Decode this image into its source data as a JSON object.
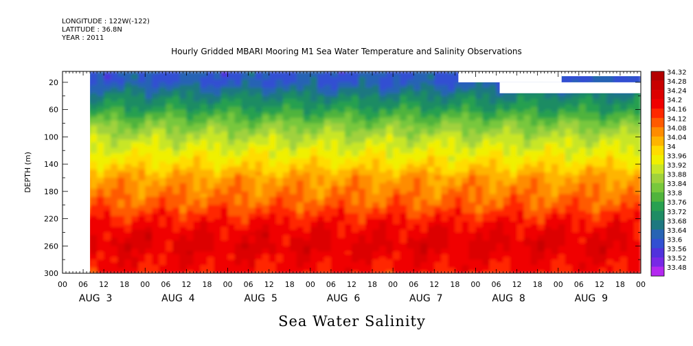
{
  "header": {
    "longitude": "LONGITUDE : 122W(-122)",
    "latitude": "LATITUDE : 36.8N",
    "year": "YEAR : 2011"
  },
  "chart_data": {
    "type": "heatmap",
    "title": "Hourly Gridded MBARI Mooring M1 Sea Water Temperature and Salinity Observations",
    "bottom_title": "Sea Water Salinity",
    "ylabel": "DEPTH (m)",
    "xlabel": "",
    "ylim": [
      300,
      4
    ],
    "y_ticks": [
      20,
      60,
      100,
      140,
      180,
      220,
      260,
      300
    ],
    "x_range_hours": [
      0,
      168
    ],
    "hour_ticks": [
      "00",
      "06",
      "12",
      "18",
      "00",
      "06",
      "12",
      "18",
      "00",
      "06",
      "12",
      "18",
      "00",
      "06",
      "12",
      "18",
      "00",
      "06",
      "12",
      "18",
      "00",
      "06",
      "12",
      "18",
      "00",
      "06",
      "12",
      "18",
      "00"
    ],
    "day_labels": [
      "AUG 3",
      "AUG 4",
      "AUG 5",
      "AUG 6",
      "AUG 7",
      "AUG 8",
      "AUG 9"
    ],
    "colorbar": {
      "levels": [
        "34.32",
        "34.28",
        "34.24",
        "34.2",
        "34.16",
        "34.12",
        "34.08",
        "34.04",
        "34",
        "33.96",
        "33.92",
        "33.88",
        "33.84",
        "33.8",
        "33.76",
        "33.72",
        "33.68",
        "33.64",
        "33.6",
        "33.56",
        "33.52",
        "33.48"
      ],
      "colors": [
        "#b40000",
        "#c80000",
        "#dc0000",
        "#f00000",
        "#ff2800",
        "#ff5a00",
        "#ff8c00",
        "#ffb400",
        "#ffdc00",
        "#f0f000",
        "#c8e628",
        "#a0d23c",
        "#78c83c",
        "#50b43c",
        "#28a050",
        "#1e8c64",
        "#1e7880",
        "#2864b4",
        "#3250d2",
        "#5032dc",
        "#7828e6",
        "#b428f0"
      ]
    },
    "profile": [
      {
        "depth": 4,
        "value": 33.64
      },
      {
        "depth": 20,
        "value": 33.64
      },
      {
        "depth": 40,
        "value": 33.72
      },
      {
        "depth": 60,
        "value": 33.78
      },
      {
        "depth": 80,
        "value": 33.86
      },
      {
        "depth": 100,
        "value": 33.92
      },
      {
        "depth": 120,
        "value": 33.97
      },
      {
        "depth": 140,
        "value": 34.02
      },
      {
        "depth": 160,
        "value": 34.08
      },
      {
        "depth": 180,
        "value": 34.11
      },
      {
        "depth": 200,
        "value": 34.14
      },
      {
        "depth": 220,
        "value": 34.19
      },
      {
        "depth": 240,
        "value": 34.23
      },
      {
        "depth": 260,
        "value": 34.25
      },
      {
        "depth": 280,
        "value": 34.22
      },
      {
        "depth": 300,
        "value": 34.2
      }
    ],
    "missing_data": [
      {
        "hour_start": 0,
        "hour_end": 8,
        "depth_start": 4,
        "depth_end": 300
      },
      {
        "hour_start": 115,
        "hour_end": 145,
        "depth_start": 4,
        "depth_end": 20
      },
      {
        "hour_start": 127,
        "hour_end": 168,
        "depth_start": 20,
        "depth_end": 36
      },
      {
        "hour_start": 145,
        "hour_end": 168,
        "depth_start": 4,
        "depth_end": 11
      }
    ]
  }
}
